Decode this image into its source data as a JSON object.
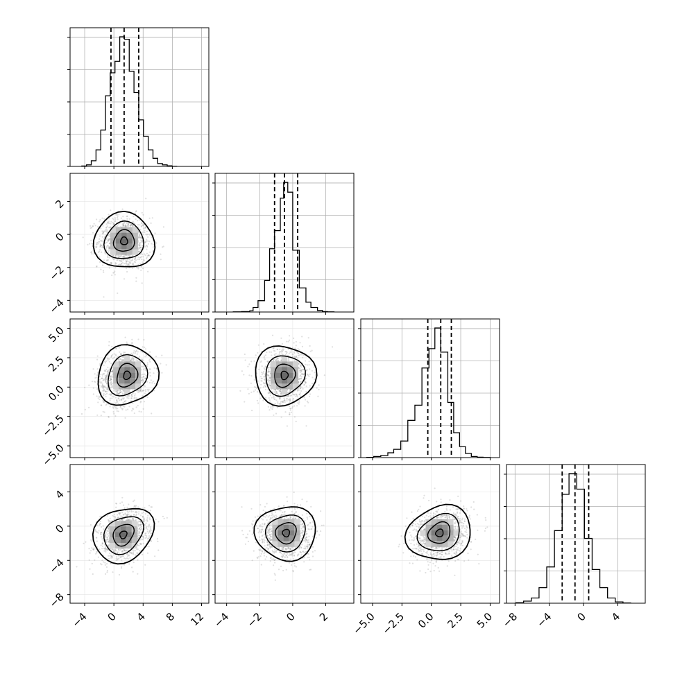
{
  "chart_data": {
    "type": "corner",
    "n_params": 4,
    "grid": true,
    "quantiles": [
      0.16,
      0.5,
      0.84
    ],
    "params": [
      {
        "mean": 1.4,
        "sd": 1.8,
        "range": [
          -6,
          13
        ],
        "tick_labels": [
          "−4",
          "0",
          "4",
          "8",
          "12"
        ],
        "tick_values": [
          -4,
          0,
          4,
          8,
          12
        ],
        "quantile_lines": [
          -0.4,
          1.4,
          3.4
        ],
        "hist": {
          "edges": [
            -4.4,
            -3.75,
            -3.1,
            -2.45,
            -1.8,
            -1.15,
            -0.5,
            0.15,
            0.8,
            1.45,
            2.1,
            2.75,
            3.4,
            4.05,
            4.7,
            5.35,
            6.0,
            6.65,
            7.3,
            7.95,
            8.6
          ],
          "counts": [
            2,
            8,
            30,
            88,
            193,
            375,
            497,
            558,
            688,
            675,
            505,
            392,
            247,
            160,
            88,
            43,
            15,
            8,
            3,
            1
          ]
        }
      },
      {
        "mean": -0.5,
        "sd": 0.8,
        "range": [
          -4.7,
          3.7
        ],
        "tick_labels": [
          "−4",
          "−2",
          "0",
          "2"
        ],
        "tick_values": [
          -4,
          -2,
          0,
          2
        ],
        "quantile_lines": [
          -1.1,
          -0.5,
          0.3
        ],
        "hist": {
          "edges": [
            -3.6,
            -3.1,
            -2.6,
            -2.4,
            -2.1,
            -1.7,
            -1.4,
            -1.1,
            -0.75,
            -0.55,
            -0.3,
            0.0,
            0.4,
            0.8,
            1.1,
            1.5,
            1.8,
            2.1,
            2.5
          ],
          "counts": [
            1,
            3,
            8,
            30,
            75,
            210,
            420,
            540,
            755,
            860,
            795,
            410,
            160,
            65,
            30,
            10,
            3,
            1
          ]
        }
      },
      {
        "mean": 0.8,
        "sd": 1.2,
        "range": [
          -6,
          5.8
        ],
        "tick_labels": [
          "−5.0",
          "−2.5",
          "0.0",
          "2.5",
          "5.0"
        ],
        "tick_values": [
          -5,
          -2.5,
          0,
          2.5,
          5
        ],
        "quantile_lines": [
          -0.3,
          0.8,
          1.7
        ],
        "hist": {
          "edges": [
            -5.5,
            -4.9,
            -4.3,
            -3.7,
            -3.2,
            -2.6,
            -2.0,
            -1.4,
            -0.8,
            -0.2,
            0.3,
            0.8,
            1.4,
            1.9,
            2.4,
            2.9,
            3.4,
            3.9,
            4.4,
            5.0
          ],
          "counts": [
            2,
            8,
            15,
            35,
            60,
            120,
            270,
            380,
            650,
            790,
            940,
            765,
            400,
            180,
            80,
            30,
            8,
            3,
            1
          ]
        }
      },
      {
        "mean": -1.0,
        "sd": 1.5,
        "range": [
          -9,
          7.2
        ],
        "tick_labels": [
          "−8",
          "−4",
          "0",
          "4"
        ],
        "tick_values": [
          -8,
          -4,
          0,
          4
        ],
        "quantile_lines": [
          -2.5,
          -1.0,
          0.6
        ],
        "hist": {
          "edges": [
            -7.9,
            -7.0,
            -6.1,
            -5.2,
            -4.3,
            -3.4,
            -2.5,
            -1.7,
            -0.8,
            0.1,
            1.0,
            1.9,
            2.8,
            3.7,
            4.6,
            5.5
          ],
          "counts": [
            2,
            8,
            20,
            60,
            140,
            280,
            420,
            500,
            440,
            250,
            130,
            60,
            20,
            5,
            1
          ]
        }
      }
    ],
    "pairs": [
      {
        "col": 0,
        "row": 1,
        "corr": -0.05,
        "peak": [
          1.4,
          -0.4
        ]
      },
      {
        "col": 0,
        "row": 2,
        "corr": 0.15,
        "peak": [
          1.8,
          1.0
        ]
      },
      {
        "col": 1,
        "row": 2,
        "corr": 0.0,
        "peak": [
          -0.5,
          1.0
        ]
      },
      {
        "col": 0,
        "row": 3,
        "corr": 0.3,
        "peak": [
          1.3,
          -1.0
        ]
      },
      {
        "col": 1,
        "row": 3,
        "corr": 0.0,
        "peak": [
          -0.4,
          -0.8
        ]
      },
      {
        "col": 2,
        "row": 3,
        "corr": 0.2,
        "peak": [
          0.7,
          -0.8
        ]
      }
    ],
    "left_tick_labels": {
      "1": [
        "2",
        "0",
        "−2",
        "−4"
      ],
      "2": [
        "5.0",
        "2.5",
        "0.0",
        "−2.5",
        "−5.0"
      ],
      "3": [
        "4",
        "0",
        "−4",
        "−8"
      ]
    },
    "left_tick_values": {
      "1": [
        2,
        0,
        -2,
        -4
      ],
      "2": [
        5,
        2.5,
        0,
        -2.5,
        -5
      ],
      "3": [
        4,
        0,
        -4,
        -8
      ]
    },
    "colors": {
      "line": "#000000",
      "grid": "#b0b0b0",
      "points": "#7f7f7f"
    }
  }
}
